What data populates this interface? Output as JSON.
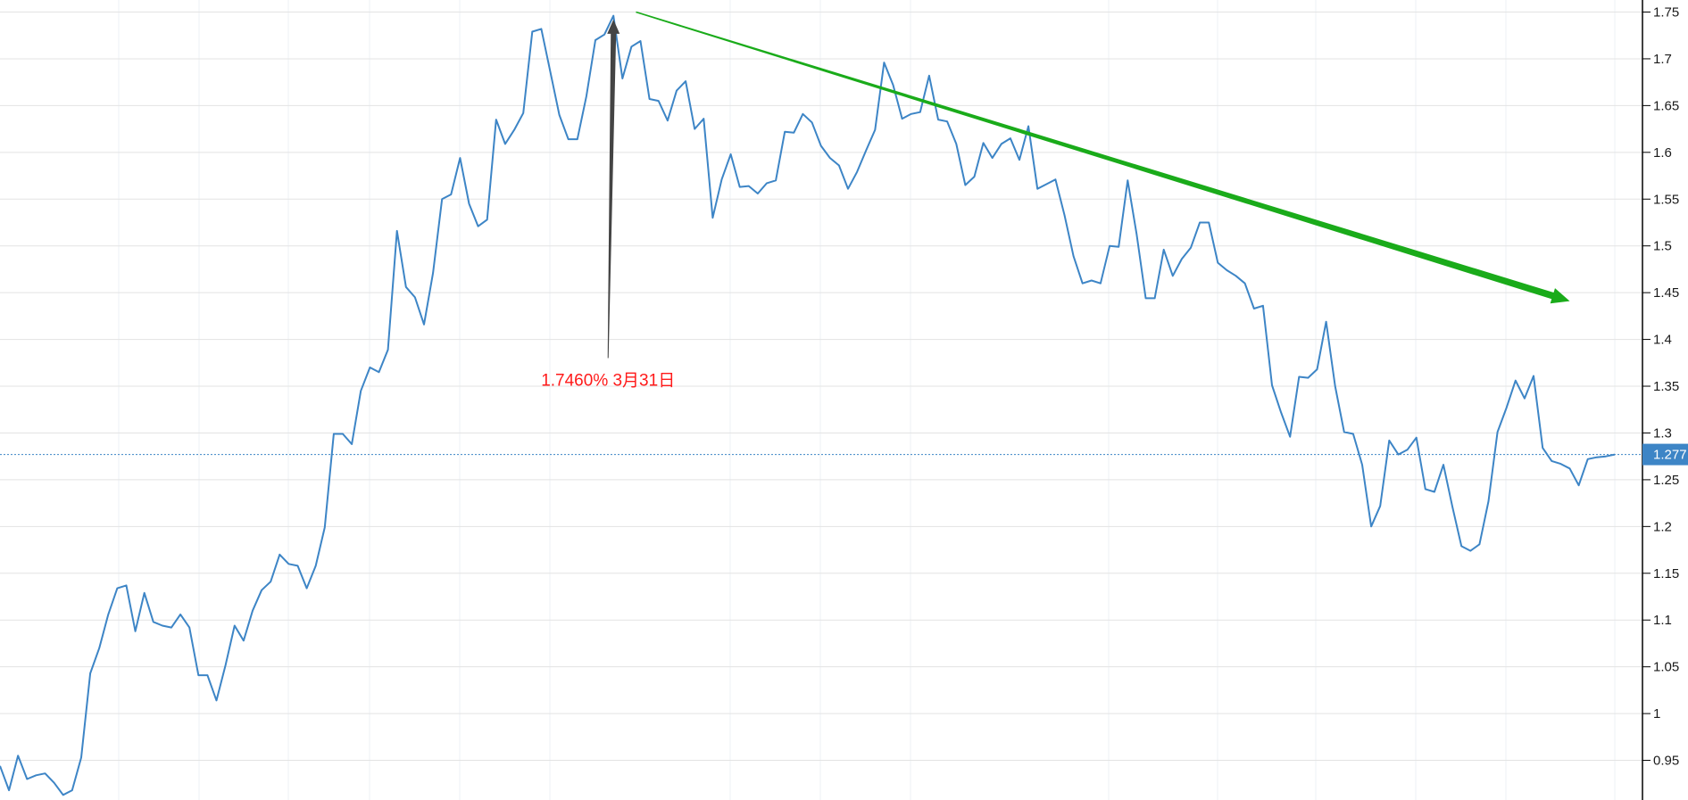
{
  "chart_data": {
    "type": "line",
    "title": "",
    "xlabel": "",
    "ylabel": "",
    "ylim": [
      0.917,
      1.758
    ],
    "grid": true,
    "y_ticks": [
      "1.75",
      "1.7",
      "1.65",
      "1.6",
      "1.55",
      "1.5",
      "1.45",
      "1.4",
      "1.35",
      "1.3",
      "1.25",
      "1.2",
      "1.15",
      "1.1",
      "1.05",
      "1",
      "0.95"
    ],
    "line_color": "#3d85c6",
    "series": [
      {
        "values": [
          0.944,
          0.918,
          0.955,
          0.93,
          0.934,
          0.936,
          0.926,
          0.913,
          0.918,
          0.953,
          1.043,
          1.07,
          1.106,
          1.134,
          1.137,
          1.088,
          1.129,
          1.098,
          1.094,
          1.092,
          1.106,
          1.092,
          1.041,
          1.041,
          1.014,
          1.052,
          1.094,
          1.078,
          1.11,
          1.132,
          1.141,
          1.17,
          1.16,
          1.158,
          1.134,
          1.158,
          1.199,
          1.299,
          1.299,
          1.288,
          1.345,
          1.37,
          1.365,
          1.389,
          1.516,
          1.456,
          1.445,
          1.416,
          1.471,
          1.55,
          1.555,
          1.594,
          1.545,
          1.521,
          1.528,
          1.635,
          1.609,
          1.624,
          1.642,
          1.729,
          1.732,
          1.686,
          1.64,
          1.614,
          1.614,
          1.66,
          1.72,
          1.726,
          1.746,
          1.679,
          1.713,
          1.719,
          1.657,
          1.655,
          1.634,
          1.666,
          1.676,
          1.625,
          1.636,
          1.53,
          1.571,
          1.598,
          1.563,
          1.564,
          1.556,
          1.567,
          1.57,
          1.622,
          1.621,
          1.641,
          1.632,
          1.607,
          1.594,
          1.586,
          1.561,
          1.579,
          1.602,
          1.624,
          1.696,
          1.672,
          1.636,
          1.641,
          1.643,
          1.682,
          1.635,
          1.633,
          1.609,
          1.565,
          1.574,
          1.61,
          1.594,
          1.609,
          1.615,
          1.592,
          1.628,
          1.561,
          1.566,
          1.571,
          1.533,
          1.489,
          1.46,
          1.463,
          1.46,
          1.5,
          1.499,
          1.57,
          1.512,
          1.444,
          1.444,
          1.496,
          1.468,
          1.486,
          1.498,
          1.525,
          1.525,
          1.482,
          1.474,
          1.468,
          1.46,
          1.433,
          1.436,
          1.351,
          1.322,
          1.296,
          1.36,
          1.359,
          1.368,
          1.419,
          1.35,
          1.301,
          1.299,
          1.266,
          1.2,
          1.222,
          1.292,
          1.277,
          1.282,
          1.295,
          1.24,
          1.237,
          1.266,
          1.221,
          1.179,
          1.174,
          1.181,
          1.227,
          1.301,
          1.327,
          1.356,
          1.337,
          1.361,
          1.284,
          1.27,
          1.267,
          1.262,
          1.244,
          1.272,
          1.274,
          1.275,
          1.277
        ]
      }
    ],
    "current_value": {
      "label": "1.277",
      "value": 1.277,
      "color": "#3d85c6"
    },
    "annotations": {
      "peak_label": "1.7460% 3月31日",
      "peak_label_color": "#ff1a1a",
      "peak_arrow": {
        "color": "#444444",
        "from_value": 1.38,
        "to_value": 1.742
      },
      "trend_arrow": {
        "color": "#1aab1a",
        "from_index": 70.5,
        "from_value": 1.75,
        "to_index": 174,
        "to_value": 1.441
      }
    }
  }
}
